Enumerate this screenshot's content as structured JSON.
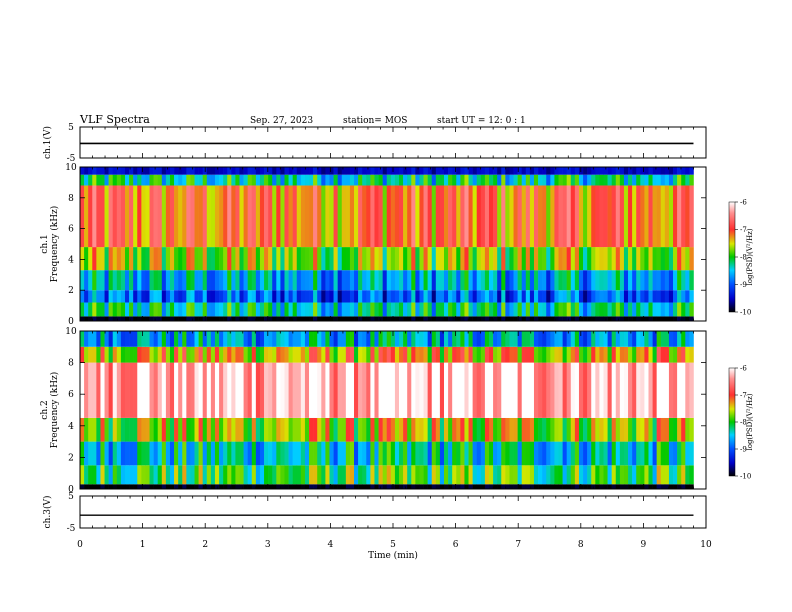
{
  "header": {
    "title": "VLF Spectra",
    "date": "Sep. 27, 2023",
    "station": "station= MOS",
    "start": "start UT =  12: 0 : 1"
  },
  "chart_data": [
    {
      "type": "line",
      "panel": "ch1-waveform",
      "ylabel": "ch.1(V)",
      "ylim": [
        -5,
        5
      ],
      "yticks": [
        "5",
        "-5"
      ],
      "xlim": [
        0,
        10
      ],
      "x": [
        0,
        9.8
      ],
      "y": [
        -0.3,
        -0.3
      ]
    },
    {
      "type": "heatmap",
      "panel": "ch1-spectrogram",
      "ylabel": "ch.1 Frequency (kHz)",
      "xlim": [
        0,
        10
      ],
      "ylim": [
        0,
        10
      ],
      "yticks": [
        "0",
        "2",
        "4",
        "6",
        "8",
        "10"
      ],
      "data_x_extent": [
        0,
        9.8
      ],
      "colorbar": {
        "label": "log(PSD)(V²/Hz)",
        "range": [
          -10,
          -6
        ],
        "ticks": [
          "-6",
          "-7",
          "-8",
          "-9",
          "-10"
        ]
      },
      "bands": [
        {
          "f0": 0,
          "f1": 0.3,
          "level": -10
        },
        {
          "f0": 0.3,
          "f1": 1.2,
          "level": -8.3
        },
        {
          "f0": 1.2,
          "f1": 2.0,
          "level": -9.0
        },
        {
          "f0": 2.0,
          "f1": 3.3,
          "level": -8.6
        },
        {
          "f0": 3.3,
          "f1": 4.8,
          "level": -7.7
        },
        {
          "f0": 4.8,
          "f1": 8.8,
          "level": -7.1
        },
        {
          "f0": 8.8,
          "f1": 9.5,
          "level": -8.3
        },
        {
          "f0": 9.5,
          "f1": 10,
          "level": -9.5
        }
      ]
    },
    {
      "type": "heatmap",
      "panel": "ch2-spectrogram",
      "ylabel": "ch.2 Frequency (kHz)",
      "xlim": [
        0,
        10
      ],
      "ylim": [
        0,
        10
      ],
      "yticks": [
        "0",
        "2",
        "4",
        "6",
        "8",
        "10"
      ],
      "data_x_extent": [
        0,
        9.8
      ],
      "colorbar": {
        "label": "log(PSD)(V²/Hz)",
        "range": [
          -10,
          -6
        ],
        "ticks": [
          "-6",
          "-7",
          "-8",
          "-9",
          "-10"
        ]
      },
      "bands": [
        {
          "f0": 0,
          "f1": 0.3,
          "level": -10
        },
        {
          "f0": 0.3,
          "f1": 1.5,
          "level": -8.0
        },
        {
          "f0": 1.5,
          "f1": 3.0,
          "level": -8.4
        },
        {
          "f0": 3.0,
          "f1": 4.5,
          "level": -7.6
        },
        {
          "f0": 4.5,
          "f1": 8.0,
          "level": -6.2
        },
        {
          "f0": 8.0,
          "f1": 9.0,
          "level": -7.4
        },
        {
          "f0": 9.0,
          "f1": 10,
          "level": -8.6
        }
      ]
    },
    {
      "type": "line",
      "panel": "ch3-waveform",
      "ylabel": "ch.3(V)",
      "xlabel": "Time (min)",
      "ylim": [
        -5,
        5
      ],
      "yticks": [
        "5",
        "-5"
      ],
      "xlim": [
        0,
        10
      ],
      "xticks": [
        "0",
        "1",
        "2",
        "3",
        "4",
        "5",
        "6",
        "7",
        "8",
        "9",
        "10"
      ],
      "x": [
        0,
        9.8
      ],
      "y": [
        -1.0,
        -1.0
      ]
    }
  ]
}
